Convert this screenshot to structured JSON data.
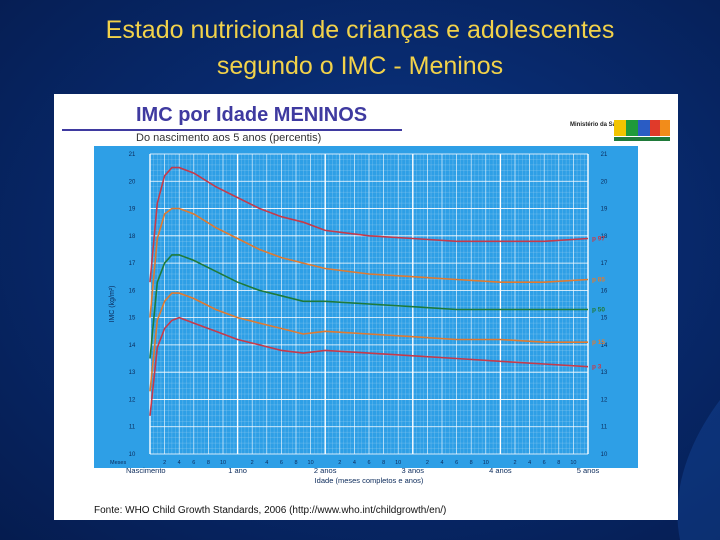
{
  "slide": {
    "title_line1": "Estado nutricional de crianças e adolescentes",
    "title_line2": "segundo o IMC - Meninos"
  },
  "card": {
    "title": "IMC por Idade MENINOS",
    "subtitle": "Do nascimento aos 5 anos (percentis)",
    "brand_name": "Ministério da Saúde",
    "source": "Fonte: WHO Child Growth Standards, 2006 (http://www.who.int/childgrowth/en/)"
  },
  "colors": {
    "background": "#082a6e",
    "title": "#f2d24a",
    "chart_bg": "#2e9fe6",
    "grid": "#a8d5f3",
    "p97": "#c63a4a",
    "p85": "#e07a30",
    "p50": "#1f7a3a",
    "p15": "#e07a30",
    "p3": "#c63a4a"
  },
  "chart_data": {
    "type": "line",
    "title": "IMC por Idade MENINOS",
    "xlabel": "Idade (meses completos e anos)",
    "ylabel": "IMC (kg/m²)",
    "ylim": [
      10,
      21
    ],
    "xlim": [
      0,
      60
    ],
    "y_ticks": [
      "10",
      "11",
      "12",
      "13",
      "14",
      "15",
      "16",
      "17",
      "18",
      "19",
      "20",
      "21"
    ],
    "x_axis_prefix": "Meses",
    "x_month_ticks": [
      {
        "x": 2,
        "label": "2"
      },
      {
        "x": 4,
        "label": "4"
      },
      {
        "x": 6,
        "label": "6"
      },
      {
        "x": 8,
        "label": "8"
      },
      {
        "x": 10,
        "label": "10"
      },
      {
        "x": 14,
        "label": "2"
      },
      {
        "x": 16,
        "label": "4"
      },
      {
        "x": 18,
        "label": "6"
      },
      {
        "x": 20,
        "label": "8"
      },
      {
        "x": 22,
        "label": "10"
      },
      {
        "x": 26,
        "label": "2"
      },
      {
        "x": 28,
        "label": "4"
      },
      {
        "x": 30,
        "label": "6"
      },
      {
        "x": 32,
        "label": "8"
      },
      {
        "x": 34,
        "label": "10"
      },
      {
        "x": 38,
        "label": "2"
      },
      {
        "x": 40,
        "label": "4"
      },
      {
        "x": 42,
        "label": "6"
      },
      {
        "x": 44,
        "label": "8"
      },
      {
        "x": 46,
        "label": "10"
      },
      {
        "x": 50,
        "label": "2"
      },
      {
        "x": 52,
        "label": "4"
      },
      {
        "x": 54,
        "label": "6"
      },
      {
        "x": 56,
        "label": "8"
      },
      {
        "x": 58,
        "label": "10"
      }
    ],
    "x_year_labels": [
      {
        "x": 0,
        "label": "Nascimento"
      },
      {
        "x": 12,
        "label": "1 ano"
      },
      {
        "x": 24,
        "label": "2 anos"
      },
      {
        "x": 36,
        "label": "3 anos"
      },
      {
        "x": 48,
        "label": "4 anos"
      },
      {
        "x": 60,
        "label": "5 anos"
      }
    ],
    "grid": true,
    "series": [
      {
        "name": "97",
        "color": "#c63a4a",
        "x": [
          0,
          1,
          2,
          3,
          4,
          6,
          9,
          12,
          15,
          18,
          21,
          24,
          30,
          36,
          42,
          48,
          54,
          60
        ],
        "y": [
          16.3,
          19.2,
          20.2,
          20.5,
          20.5,
          20.3,
          19.8,
          19.4,
          19.0,
          18.7,
          18.5,
          18.2,
          18.0,
          17.9,
          17.8,
          17.8,
          17.8,
          17.9
        ]
      },
      {
        "name": "85",
        "color": "#e07a30",
        "x": [
          0,
          1,
          2,
          3,
          4,
          6,
          9,
          12,
          15,
          18,
          21,
          24,
          30,
          36,
          42,
          48,
          54,
          60
        ],
        "y": [
          15.0,
          17.9,
          18.8,
          19.0,
          19.0,
          18.8,
          18.3,
          17.9,
          17.5,
          17.2,
          17.0,
          16.8,
          16.6,
          16.5,
          16.4,
          16.3,
          16.3,
          16.4
        ]
      },
      {
        "name": "50",
        "color": "#1f7a3a",
        "x": [
          0,
          1,
          2,
          3,
          4,
          6,
          9,
          12,
          15,
          18,
          21,
          24,
          30,
          36,
          42,
          48,
          54,
          60
        ],
        "y": [
          13.5,
          16.3,
          17.0,
          17.3,
          17.3,
          17.1,
          16.7,
          16.3,
          16.0,
          15.8,
          15.6,
          15.6,
          15.5,
          15.4,
          15.3,
          15.3,
          15.3,
          15.3
        ]
      },
      {
        "name": "15",
        "color": "#e07a30",
        "x": [
          0,
          1,
          2,
          3,
          4,
          6,
          9,
          12,
          15,
          18,
          21,
          24,
          30,
          36,
          42,
          48,
          54,
          60
        ],
        "y": [
          12.3,
          14.9,
          15.6,
          15.9,
          15.9,
          15.7,
          15.3,
          15.0,
          14.8,
          14.6,
          14.4,
          14.5,
          14.4,
          14.3,
          14.2,
          14.2,
          14.1,
          14.1
        ]
      },
      {
        "name": "3",
        "color": "#c63a4a",
        "x": [
          0,
          1,
          2,
          3,
          4,
          6,
          9,
          12,
          15,
          18,
          21,
          24,
          30,
          36,
          42,
          48,
          54,
          60
        ],
        "y": [
          11.4,
          13.9,
          14.6,
          14.9,
          15.0,
          14.8,
          14.5,
          14.2,
          14.0,
          13.8,
          13.7,
          13.8,
          13.7,
          13.6,
          13.5,
          13.4,
          13.3,
          13.2
        ]
      }
    ],
    "series_label_prefix": "p"
  }
}
